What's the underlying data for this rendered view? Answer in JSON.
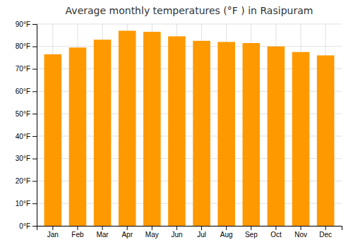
{
  "chart_data": {
    "type": "bar",
    "title": "Average monthly temperatures (°F ) in Rasipuram",
    "categories": [
      "Jan",
      "Feb",
      "Mar",
      "Apr",
      "May",
      "Jun",
      "Jul",
      "Aug",
      "Sep",
      "Oct",
      "Nov",
      "Dec"
    ],
    "values": [
      76.5,
      79.5,
      83.0,
      87.0,
      86.5,
      84.5,
      82.5,
      82.0,
      81.5,
      80.0,
      77.5,
      76.0
    ],
    "color": "#FF9900",
    "ylim": [
      0,
      90
    ],
    "yticks": [
      {
        "value": 0,
        "label": "0°F"
      },
      {
        "value": 10,
        "label": "10°F"
      },
      {
        "value": 20,
        "label": "20°F"
      },
      {
        "value": 30,
        "label": "30°F"
      },
      {
        "value": 40,
        "label": "40°F"
      },
      {
        "value": 50,
        "label": "50°F"
      },
      {
        "value": 60,
        "label": "60°F"
      },
      {
        "value": 70,
        "label": "70°F"
      },
      {
        "value": 80,
        "label": "80°F"
      },
      {
        "value": 90,
        "label": "90°F"
      }
    ],
    "grid": true
  }
}
